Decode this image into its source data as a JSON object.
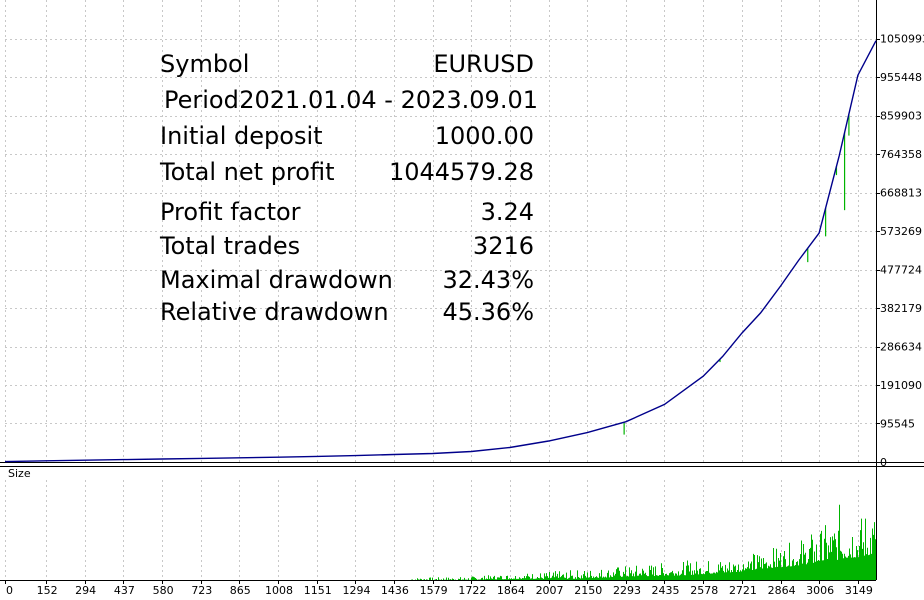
{
  "chart_data": {
    "type": "line",
    "subchart_title": "Size",
    "colors": {
      "balance": "#00008b",
      "equity": "#00b400",
      "volume": "#00b400",
      "grid": "#c8c8c8",
      "axis": "#000000"
    },
    "grid": true,
    "xlim": [
      0,
      3216
    ],
    "ylim": [
      0,
      1146538
    ],
    "x_ticks": [
      0,
      152,
      294,
      437,
      580,
      723,
      865,
      1008,
      1151,
      1294,
      1436,
      1579,
      1722,
      1864,
      2007,
      2150,
      2293,
      2435,
      2578,
      2721,
      2864,
      3006,
      3149
    ],
    "y_ticks": [
      0,
      95545,
      191090,
      286634,
      382179,
      477724,
      573269,
      668813,
      764358,
      859903,
      955448,
      1050993
    ],
    "series": [
      {
        "role": "balance",
        "x": [
          0,
          152,
          294,
          437,
          580,
          723,
          865,
          1008,
          1151,
          1294,
          1436,
          1579,
          1722,
          1864,
          2007,
          2150,
          2293,
          2435,
          2578,
          2650,
          2721,
          2790,
          2864,
          2930,
          3006,
          3080,
          3149,
          3216
        ],
        "y": [
          1000,
          3000,
          4500,
          6000,
          7500,
          9000,
          10500,
          12000,
          14000,
          16000,
          18500,
          21000,
          26000,
          36000,
          52000,
          73000,
          100000,
          143000,
          213000,
          262000,
          320000,
          370000,
          437000,
          500000,
          568000,
          760000,
          960000,
          1045579
        ]
      },
      {
        "role": "equity",
        "x": [
          2286,
          2640,
          2964,
          3030,
          3070,
          3100,
          3116
        ],
        "y": [
          68000,
          248000,
          496000,
          560000,
          712000,
          625000,
          810000
        ]
      }
    ],
    "volume": {
      "x": [
        1500,
        1700,
        1900,
        2100,
        2300,
        2500,
        2700,
        2800,
        2900,
        3000,
        3060,
        3100,
        3149,
        3190,
        3216
      ],
      "peaks": [
        0.02,
        0.03,
        0.06,
        0.09,
        0.13,
        0.17,
        0.2,
        0.27,
        0.33,
        0.45,
        0.55,
        0.82,
        0.55,
        0.68,
        0.6
      ],
      "base": [
        0.0,
        0.0,
        0.01,
        0.01,
        0.03,
        0.04,
        0.07,
        0.1,
        0.12,
        0.15,
        0.17,
        0.19,
        0.2,
        0.22,
        0.23
      ]
    }
  },
  "stats": [
    {
      "label": "Symbol",
      "value": "EURUSD"
    },
    {
      "label": "Period",
      "value": "2021.01.04 - 2023.09.01"
    },
    {
      "label": "Initial deposit",
      "value": "1000.00"
    },
    {
      "label": "Total net profit",
      "value": "1044579.28"
    },
    {
      "label": "Profit factor",
      "value": "3.24"
    },
    {
      "label": "Total trades",
      "value": "3216"
    },
    {
      "label": "Maximal drawdown",
      "value": "32.43%"
    },
    {
      "label": "Relative drawdown",
      "value": "45.36%"
    }
  ]
}
